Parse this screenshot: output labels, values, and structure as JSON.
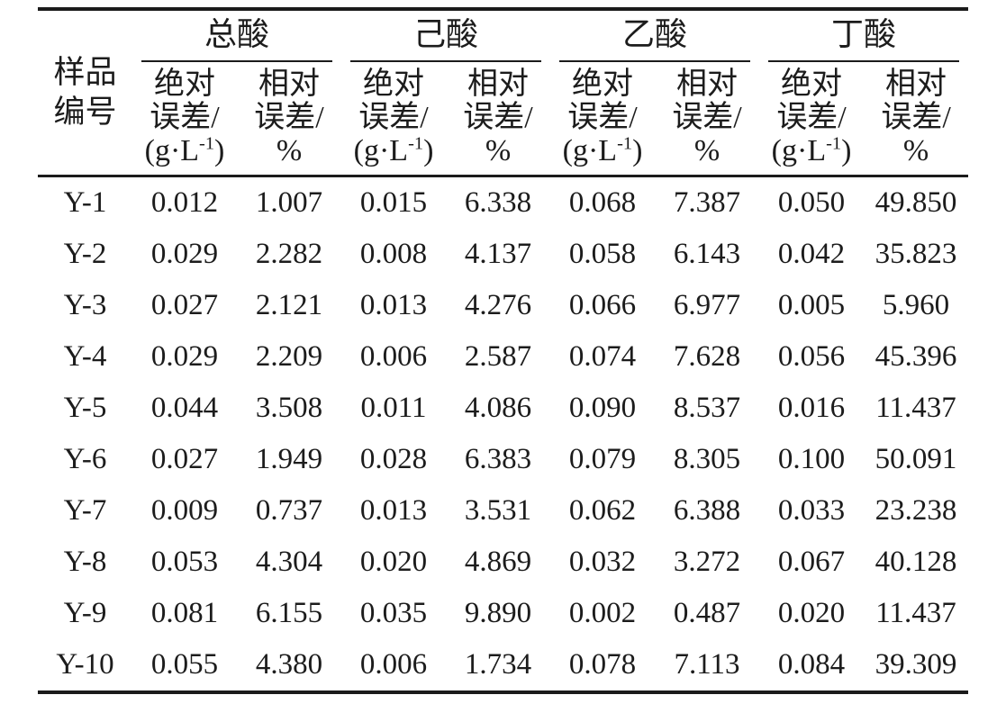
{
  "page": {
    "background": "#ffffff",
    "text_color": "#1c1c1c",
    "rule_color": "#1b1b1b"
  },
  "table": {
    "sample_header": "样品\n编号",
    "groups": [
      {
        "label": "总酸"
      },
      {
        "label": "己酸"
      },
      {
        "label": "乙酸"
      },
      {
        "label": "丁酸"
      }
    ],
    "subheaders": {
      "absolute_line1": "绝对",
      "absolute_line2": "误差/",
      "absolute_unit_base": "(g·L",
      "absolute_unit_sup": "-1",
      "absolute_unit_close": ")",
      "relative_line1": "相对",
      "relative_line2": "误差/",
      "relative_unit": "%"
    },
    "rows": [
      {
        "id": "Y-1",
        "values": [
          "0.012",
          "1.007",
          "0.015",
          "6.338",
          "0.068",
          "7.387",
          "0.050",
          "49.850"
        ]
      },
      {
        "id": "Y-2",
        "values": [
          "0.029",
          "2.282",
          "0.008",
          "4.137",
          "0.058",
          "6.143",
          "0.042",
          "35.823"
        ]
      },
      {
        "id": "Y-3",
        "values": [
          "0.027",
          "2.121",
          "0.013",
          "4.276",
          "0.066",
          "6.977",
          "0.005",
          "5.960"
        ]
      },
      {
        "id": "Y-4",
        "values": [
          "0.029",
          "2.209",
          "0.006",
          "2.587",
          "0.074",
          "7.628",
          "0.056",
          "45.396"
        ]
      },
      {
        "id": "Y-5",
        "values": [
          "0.044",
          "3.508",
          "0.011",
          "4.086",
          "0.090",
          "8.537",
          "0.016",
          "11.437"
        ]
      },
      {
        "id": "Y-6",
        "values": [
          "0.027",
          "1.949",
          "0.028",
          "6.383",
          "0.079",
          "8.305",
          "0.100",
          "50.091"
        ]
      },
      {
        "id": "Y-7",
        "values": [
          "0.009",
          "0.737",
          "0.013",
          "3.531",
          "0.062",
          "6.388",
          "0.033",
          "23.238"
        ]
      },
      {
        "id": "Y-8",
        "values": [
          "0.053",
          "4.304",
          "0.020",
          "4.869",
          "0.032",
          "3.272",
          "0.067",
          "40.128"
        ]
      },
      {
        "id": "Y-9",
        "values": [
          "0.081",
          "6.155",
          "0.035",
          "9.890",
          "0.002",
          "0.487",
          "0.020",
          "11.437"
        ]
      },
      {
        "id": "Y-10",
        "values": [
          "0.055",
          "4.380",
          "0.006",
          "1.734",
          "0.078",
          "7.113",
          "0.084",
          "39.309"
        ]
      }
    ]
  }
}
